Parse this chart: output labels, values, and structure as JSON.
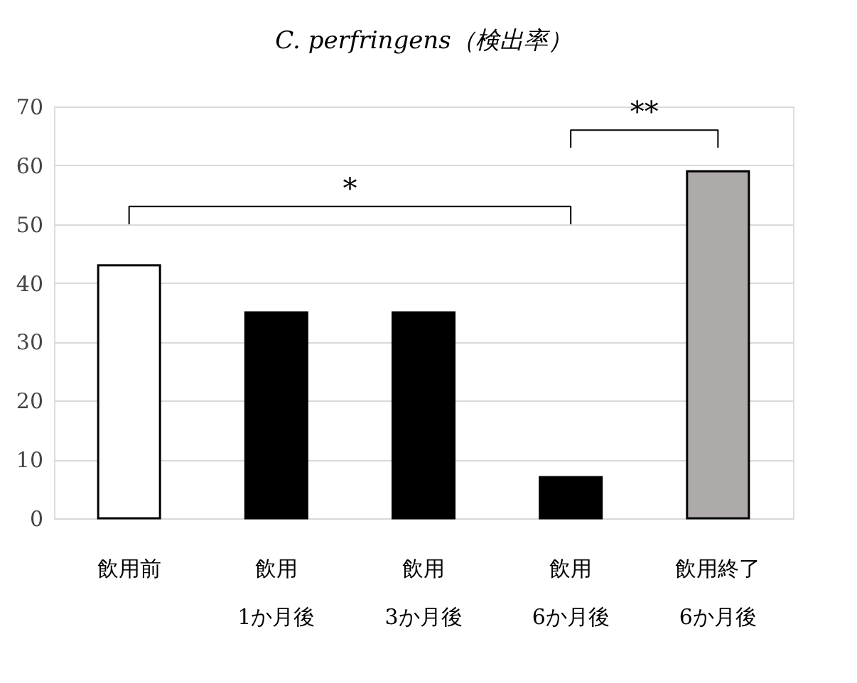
{
  "chart_data": {
    "type": "bar",
    "title": "C. perfringens（検出率）",
    "categories": [
      "飲用前",
      "飲用\n1か月後",
      "飲用\n3か月後",
      "飲用\n6か月後",
      "飲用終了\n6か月後"
    ],
    "values": [
      43,
      35,
      35,
      7,
      59
    ],
    "colors": [
      "#ffffff",
      "#000000",
      "#000000",
      "#000000",
      "#aeaaaa"
    ],
    "ylim": [
      0,
      70
    ],
    "yticks": [
      0,
      10,
      20,
      30,
      40,
      50,
      60,
      70
    ],
    "grid": "y",
    "annotations": [
      "*",
      "**"
    ]
  }
}
